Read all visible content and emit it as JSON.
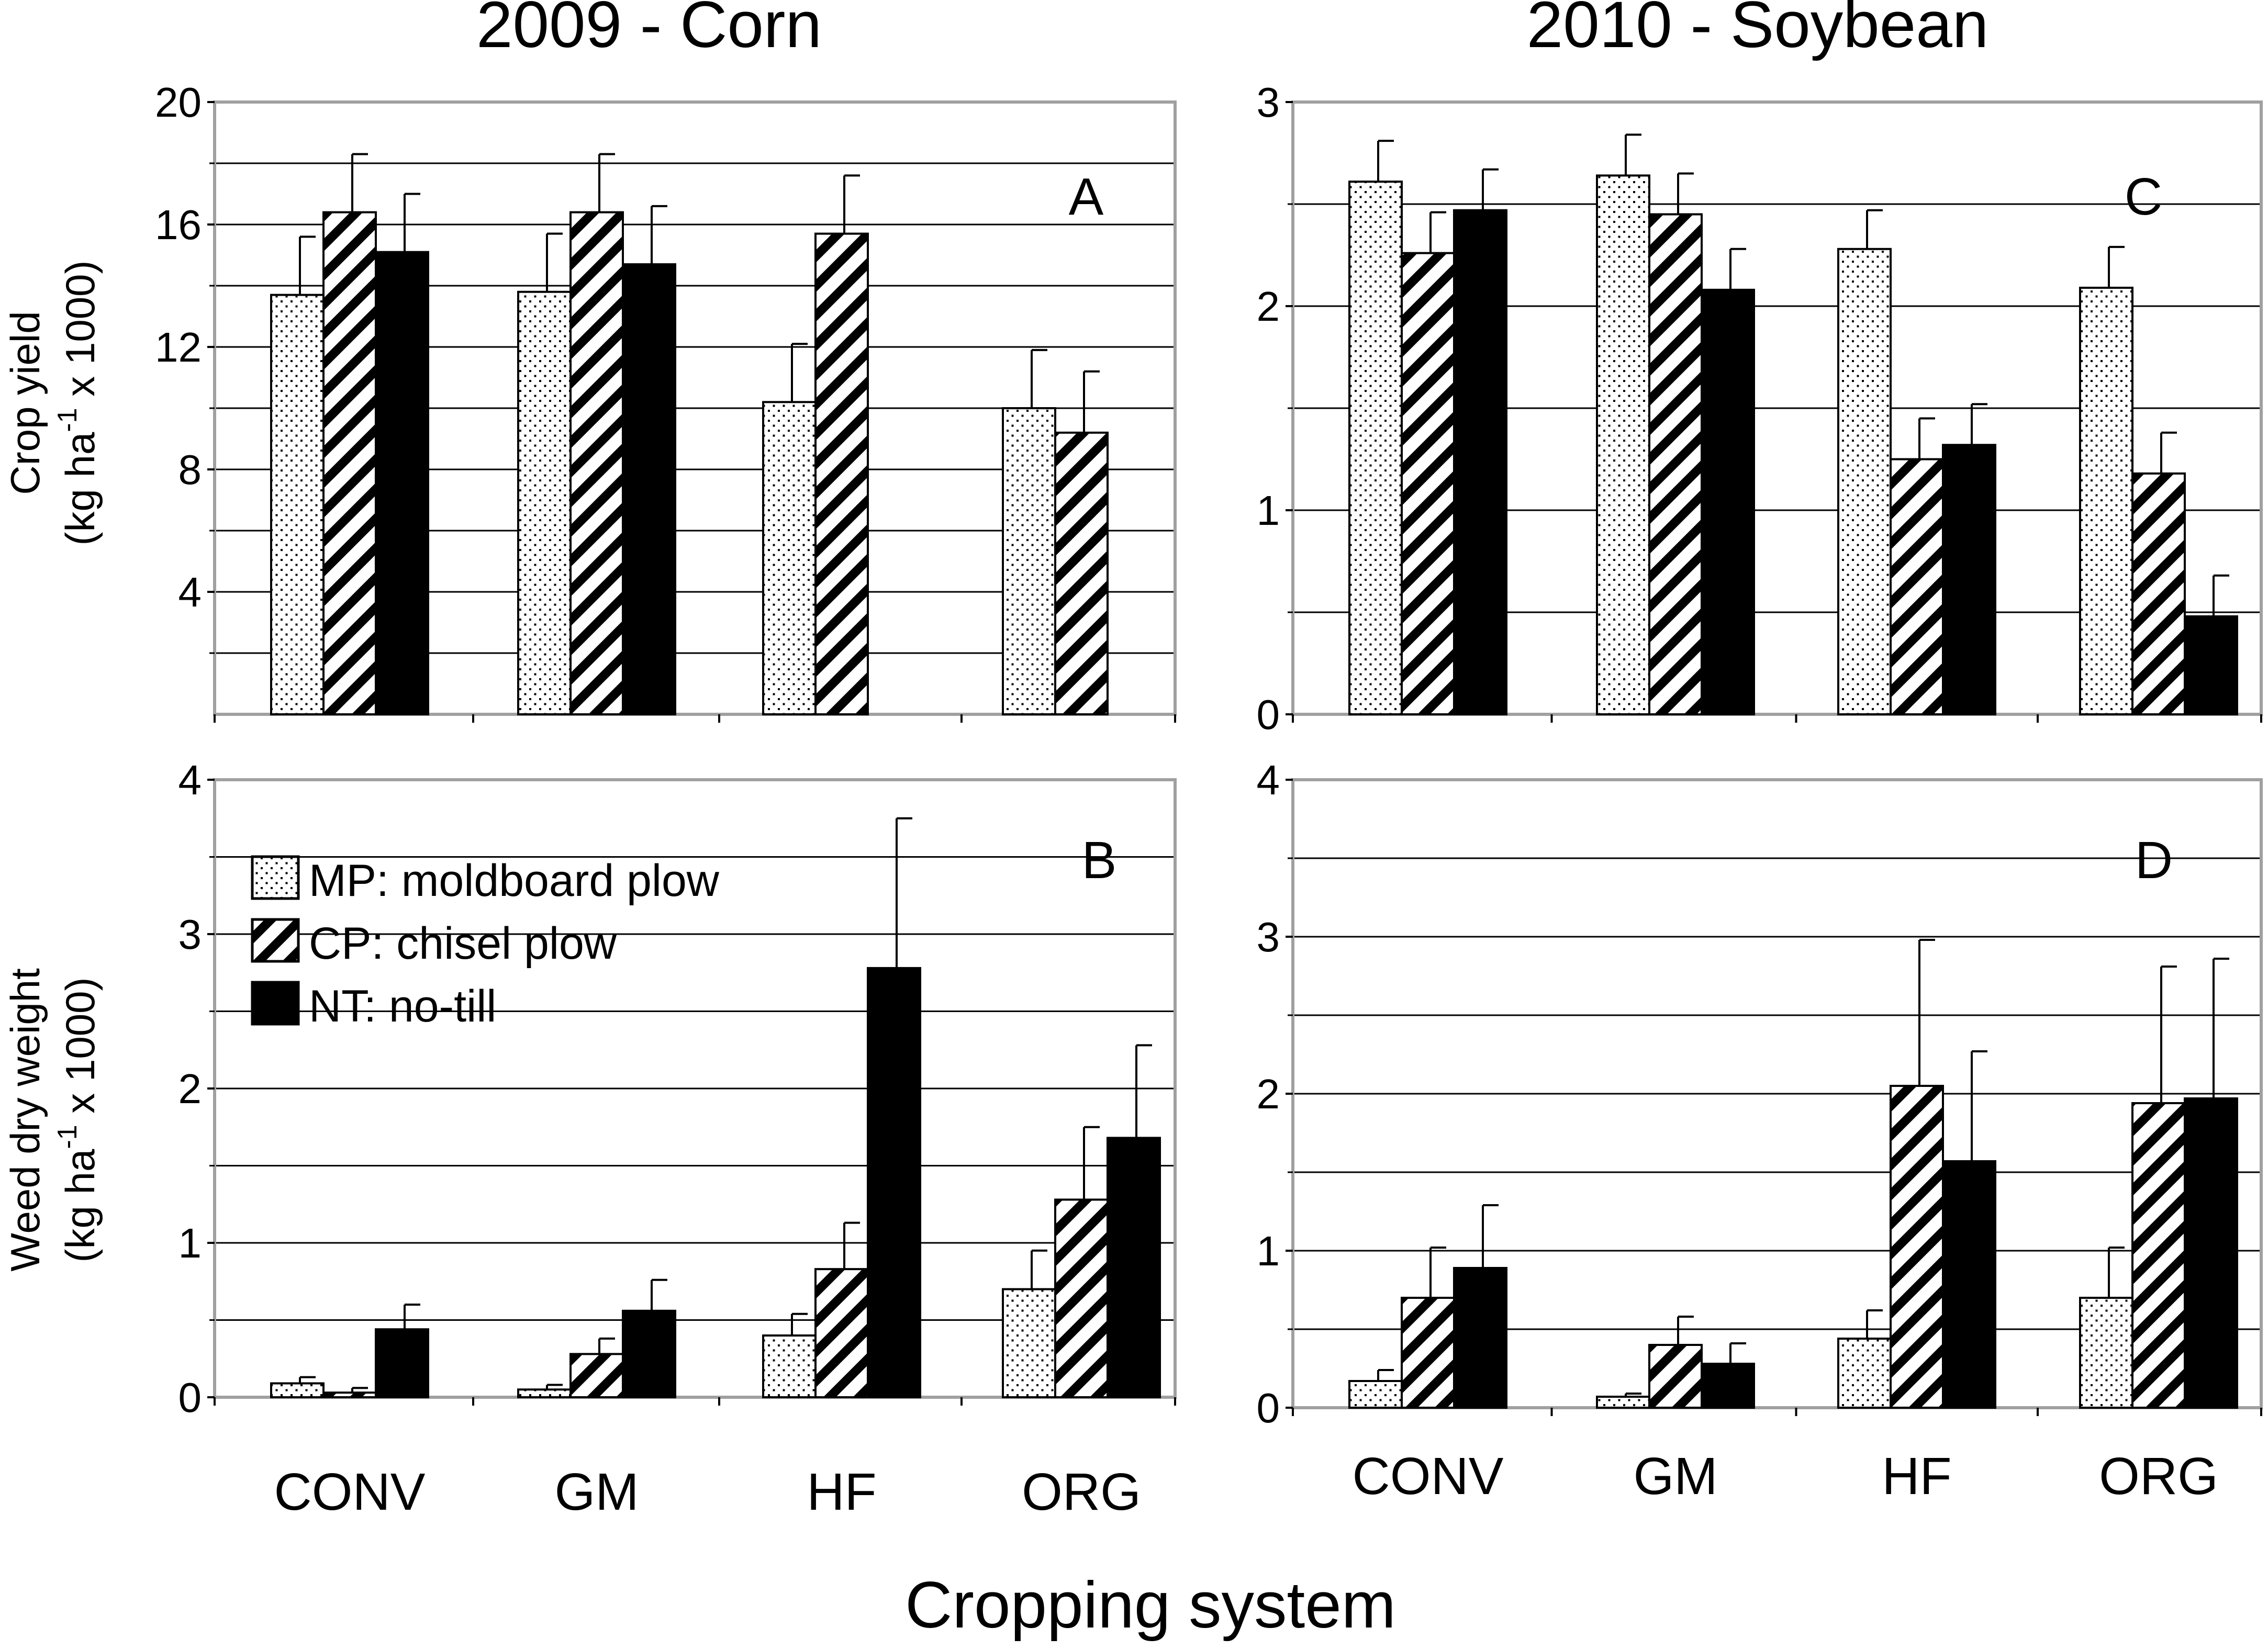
{
  "figure": {
    "col_titles": [
      "2009 - Corn",
      "2010 - Soybean"
    ],
    "xlabel": "Cropping system",
    "ylabel_top": [
      "Crop yield",
      "(kg ha",
      "-1",
      " x 1000)"
    ],
    "ylabel_bottom": [
      "Weed dry weight",
      "(kg ha",
      "-1",
      " x 1000)"
    ]
  },
  "legend": {
    "items": [
      {
        "key": "MP",
        "label": "MP: moldboard plow",
        "pattern": "dots"
      },
      {
        "key": "CP",
        "label": "CP: chisel plow",
        "pattern": "diagonal-stripes"
      },
      {
        "key": "NT",
        "label": "NT: no-till",
        "pattern": "solid-black"
      }
    ]
  },
  "colors": {
    "bar_fill_solid": "#000000",
    "pattern_bg": "#ffffff",
    "frame": "#a0a0a0",
    "grid": "#000000"
  },
  "chart_data": [
    {
      "panel": "A",
      "type": "bar",
      "categories": [
        "CONV",
        "GM",
        "HF",
        "ORG"
      ],
      "ylim": [
        0,
        20
      ],
      "yticks": [
        4,
        8,
        12,
        16,
        20
      ],
      "ytick_labels": [
        "4",
        "8",
        "12",
        "16",
        "20"
      ],
      "gridlines": [
        2,
        4,
        6,
        8,
        10,
        12,
        14,
        16,
        18
      ],
      "show_xtick_labels": false,
      "series": [
        {
          "name": "MP",
          "values": [
            13.7,
            13.8,
            10.2,
            10.0
          ],
          "err": [
            1.9,
            1.9,
            1.9,
            1.9
          ]
        },
        {
          "name": "CP",
          "values": [
            16.4,
            16.4,
            15.7,
            9.2
          ],
          "err": [
            1.9,
            1.9,
            1.9,
            2.0
          ]
        },
        {
          "name": "NT",
          "values": [
            15.1,
            14.7,
            null,
            null
          ],
          "err": [
            1.9,
            1.9,
            null,
            null
          ]
        }
      ]
    },
    {
      "panel": "B",
      "type": "bar",
      "categories": [
        "CONV",
        "GM",
        "HF",
        "ORG"
      ],
      "ylim": [
        0,
        4
      ],
      "yticks": [
        0,
        1,
        2,
        3,
        4
      ],
      "ytick_labels": [
        "0",
        "1",
        "2",
        "3",
        "4"
      ],
      "gridlines": [
        0.5,
        1,
        1.5,
        2,
        2.5,
        3,
        3.5
      ],
      "show_xtick_labels": true,
      "series": [
        {
          "name": "MP",
          "values": [
            0.09,
            0.05,
            0.4,
            0.7
          ],
          "err": [
            0.04,
            0.03,
            0.14,
            0.25
          ]
        },
        {
          "name": "CP",
          "values": [
            0.03,
            0.28,
            0.83,
            1.28
          ],
          "err": [
            0.03,
            0.1,
            0.3,
            0.47
          ]
        },
        {
          "name": "NT",
          "values": [
            0.44,
            0.56,
            2.78,
            1.68
          ],
          "err": [
            0.16,
            0.2,
            0.97,
            0.6
          ]
        }
      ]
    },
    {
      "panel": "C",
      "type": "bar",
      "categories": [
        "CONV",
        "GM",
        "HF",
        "ORG"
      ],
      "ylim": [
        0,
        3
      ],
      "yticks": [
        0,
        1,
        2,
        3
      ],
      "ytick_labels": [
        "0",
        "1",
        "2",
        "3"
      ],
      "gridlines": [
        0.5,
        1,
        1.5,
        2,
        2.5
      ],
      "show_xtick_labels": false,
      "series": [
        {
          "name": "MP",
          "values": [
            2.61,
            2.64,
            2.28,
            2.09
          ],
          "err": [
            0.2,
            0.2,
            0.19,
            0.2
          ]
        },
        {
          "name": "CP",
          "values": [
            2.26,
            2.45,
            1.25,
            1.18
          ],
          "err": [
            0.2,
            0.2,
            0.2,
            0.2
          ]
        },
        {
          "name": "NT",
          "values": [
            2.47,
            2.08,
            1.32,
            0.48
          ],
          "err": [
            0.2,
            0.2,
            0.2,
            0.2
          ]
        }
      ]
    },
    {
      "panel": "D",
      "type": "bar",
      "categories": [
        "CONV",
        "GM",
        "HF",
        "ORG"
      ],
      "ylim": [
        0,
        4
      ],
      "yticks": [
        0,
        1,
        2,
        3,
        4
      ],
      "ytick_labels": [
        "0",
        "1",
        "2",
        "3",
        "4"
      ],
      "gridlines": [
        0.5,
        1,
        1.5,
        2,
        2.5,
        3,
        3.5
      ],
      "show_xtick_labels": true,
      "series": [
        {
          "name": "MP",
          "values": [
            0.17,
            0.07,
            0.44,
            0.7
          ],
          "err": [
            0.07,
            0.02,
            0.18,
            0.32
          ]
        },
        {
          "name": "CP",
          "values": [
            0.7,
            0.4,
            2.05,
            1.94
          ],
          "err": [
            0.32,
            0.18,
            0.93,
            0.87
          ]
        },
        {
          "name": "NT",
          "values": [
            0.89,
            0.28,
            1.57,
            1.97
          ],
          "err": [
            0.4,
            0.13,
            0.7,
            0.89
          ]
        }
      ]
    }
  ]
}
